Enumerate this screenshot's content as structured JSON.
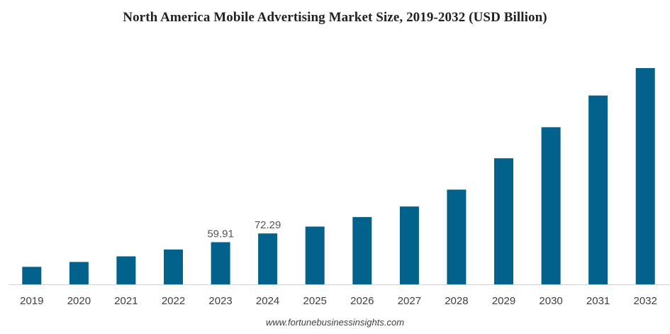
{
  "chart_data": {
    "type": "bar",
    "title": "North America Mobile Advertising Market Size, 2019-2032 (USD Billion)",
    "xlabel": "",
    "ylabel": "",
    "categories": [
      "2019",
      "2020",
      "2021",
      "2022",
      "2023",
      "2024",
      "2025",
      "2026",
      "2027",
      "2028",
      "2029",
      "2030",
      "2031",
      "2032"
    ],
    "values": [
      24.9,
      31.8,
      39.8,
      49.5,
      59.91,
      72.29,
      82.0,
      95.5,
      110.5,
      134.5,
      179.0,
      223.0,
      268.0,
      307.0
    ],
    "data_labels": {
      "2023": "59.91",
      "2024": "72.29"
    },
    "ylim": [
      0,
      310
    ],
    "grid": false,
    "legend": "none",
    "bar_color": "#03628b",
    "axis_color": "#d0d0d0"
  },
  "source": "www.fortunebusinessinsights.com"
}
